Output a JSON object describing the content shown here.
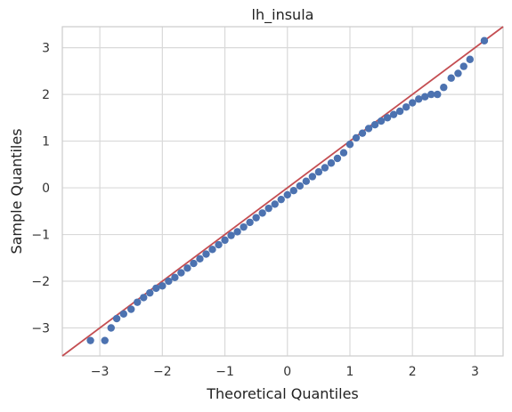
{
  "chart_data": {
    "type": "scatter",
    "title": "lh_insula",
    "xlabel": "Theoretical Quantiles",
    "ylabel": "Sample Quantiles",
    "xlim": [
      -3.6,
      3.45
    ],
    "ylim": [
      -3.6,
      3.45
    ],
    "xticks": [
      -3,
      -2,
      -1,
      0,
      1,
      2,
      3
    ],
    "yticks": [
      -3,
      -2,
      -1,
      0,
      1,
      2,
      3
    ],
    "xtick_labels": [
      "−3",
      "−2",
      "−1",
      "0",
      "1",
      "2",
      "3"
    ],
    "ytick_labels": [
      "−3",
      "−2",
      "−1",
      "0",
      "1",
      "2",
      "3"
    ],
    "grid": true,
    "legend": "none",
    "reference_line": {
      "slope": 1,
      "intercept": 0,
      "color": "#c44e52"
    },
    "marker_color": "#4c72b0",
    "series": [
      {
        "x": [
          -3.15,
          -2.92,
          -2.82,
          -2.73,
          -2.62,
          -2.5,
          -2.4,
          -2.3,
          -2.2,
          -2.1,
          -2.0,
          -1.9,
          -1.8,
          -1.7,
          -1.6,
          -1.5,
          -1.4,
          -1.3,
          -1.2,
          -1.1,
          -1.0,
          -0.9,
          -0.8,
          -0.7,
          -0.6,
          -0.5,
          -0.4,
          -0.3,
          -0.2,
          -0.1,
          0.0,
          0.1,
          0.2,
          0.3,
          0.4,
          0.5,
          0.6,
          0.7,
          0.8,
          0.9,
          1.0,
          1.1,
          1.2,
          1.3,
          1.4,
          1.5,
          1.6,
          1.7,
          1.8,
          1.9,
          2.0,
          2.1,
          2.2,
          2.3,
          2.4,
          2.5,
          2.62,
          2.73,
          2.82,
          2.92,
          3.15
        ],
        "y": [
          -3.27,
          -3.27,
          -3.0,
          -2.8,
          -2.7,
          -2.6,
          -2.45,
          -2.35,
          -2.25,
          -2.15,
          -2.1,
          -2.0,
          -1.92,
          -1.82,
          -1.72,
          -1.62,
          -1.52,
          -1.42,
          -1.32,
          -1.22,
          -1.12,
          -1.02,
          -0.94,
          -0.84,
          -0.74,
          -0.64,
          -0.54,
          -0.44,
          -0.35,
          -0.25,
          -0.15,
          -0.06,
          0.04,
          0.14,
          0.24,
          0.34,
          0.43,
          0.53,
          0.63,
          0.75,
          0.93,
          1.07,
          1.17,
          1.27,
          1.35,
          1.43,
          1.5,
          1.57,
          1.64,
          1.73,
          1.82,
          1.9,
          1.95,
          2.0,
          2.0,
          2.15,
          2.35,
          2.45,
          2.6,
          2.75,
          3.15
        ]
      }
    ]
  }
}
